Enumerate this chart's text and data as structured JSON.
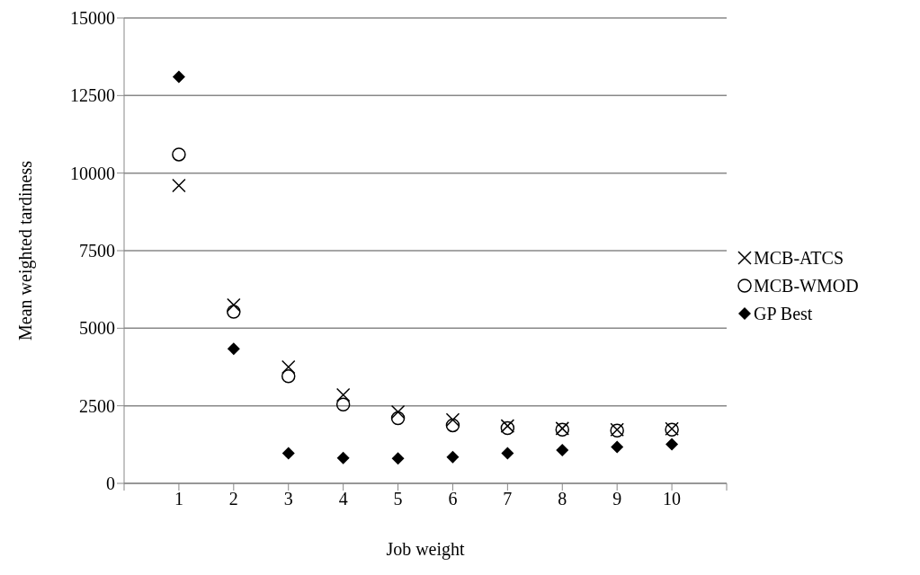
{
  "chart_data": {
    "type": "scatter",
    "xlabel": "Job weight",
    "ylabel": "Mean weighted tardiness",
    "x": [
      1,
      2,
      3,
      4,
      5,
      6,
      7,
      8,
      9,
      10
    ],
    "xlim": [
      0,
      11
    ],
    "xticks": [
      {
        "value": 0,
        "label": null
      },
      1,
      2,
      3,
      4,
      5,
      6,
      7,
      8,
      9,
      10,
      {
        "value": 11,
        "label": null
      }
    ],
    "ylim": [
      0,
      15000
    ],
    "yticks": [
      0,
      2500,
      5000,
      7500,
      10000,
      12500,
      15000
    ],
    "grid": "y",
    "legend": "right",
    "series": [
      {
        "name": "MCB-ATCS",
        "color": "#000000",
        "marker": "cross",
        "values": [
          9600,
          5750,
          3750,
          2850,
          2300,
          2050,
          1850,
          1770,
          1730,
          1760
        ]
      },
      {
        "name": "MCB-WMOD",
        "color": "#000000",
        "marker": "circle",
        "values": [
          10600,
          5530,
          3450,
          2540,
          2100,
          1870,
          1780,
          1730,
          1700,
          1730
        ]
      },
      {
        "name": "GP Best",
        "color": "#000000",
        "marker": "diamond",
        "values": [
          13100,
          4340,
          970,
          820,
          800,
          850,
          970,
          1070,
          1170,
          1260
        ]
      }
    ]
  }
}
